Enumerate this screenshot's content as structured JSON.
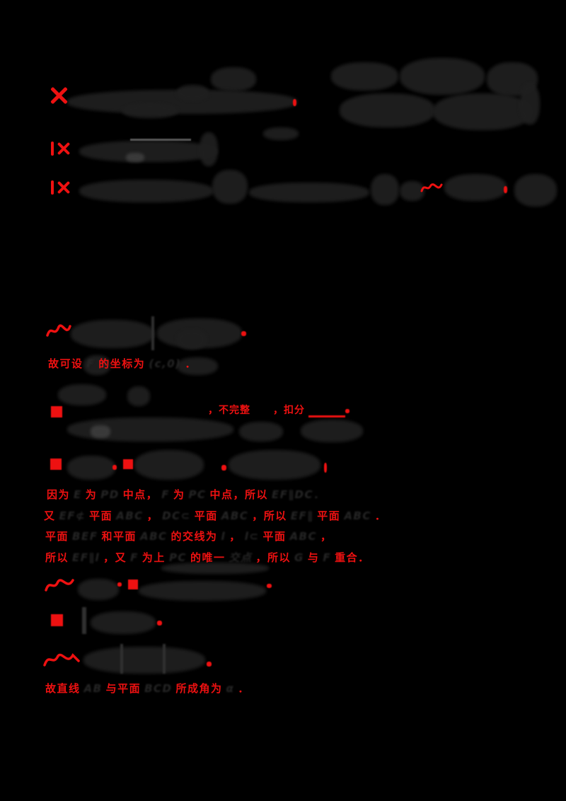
{
  "page": {
    "background": "#000000",
    "red_pen_color": "#ee1111",
    "ink_color": "#262626"
  },
  "icons": {
    "cross": "✗",
    "filled_square": "■",
    "dot": "・"
  },
  "red_lines": {
    "coordinate_note": [
      {
        "c": "r",
        "t": "故可设"
      },
      {
        "c": "k",
        "t": "F"
      },
      {
        "c": "r",
        "t": "的坐标为"
      },
      {
        "c": "k",
        "t": "(c,0)"
      },
      {
        "c": "r",
        "t": "．"
      }
    ],
    "incomplete_note": {
      "part1": "，不完整",
      "part2": "，扣分"
    },
    "proof_line1": [
      {
        "c": "r",
        "t": "因为"
      },
      {
        "c": "k",
        "t": "E"
      },
      {
        "c": "r",
        "t": "为"
      },
      {
        "c": "k",
        "t": "PD"
      },
      {
        "c": "r",
        "t": "中点，"
      },
      {
        "c": "k",
        "t": "F"
      },
      {
        "c": "r",
        "t": "为"
      },
      {
        "c": "k",
        "t": "PC"
      },
      {
        "c": "r",
        "t": "中点，所以"
      },
      {
        "c": "k",
        "t": "EF∥DC．"
      }
    ],
    "proof_line2": [
      {
        "c": "r",
        "t": "又"
      },
      {
        "c": "k",
        "t": "EF⊄"
      },
      {
        "c": "r",
        "t": "平面"
      },
      {
        "c": "k",
        "t": "ABC"
      },
      {
        "c": "r",
        "t": "，"
      },
      {
        "c": "k",
        "t": "DC⊂"
      },
      {
        "c": "r",
        "t": "平面"
      },
      {
        "c": "k",
        "t": "ABC"
      },
      {
        "c": "r",
        "t": "，所以"
      },
      {
        "c": "k",
        "t": "EF∥"
      },
      {
        "c": "r",
        "t": "平面"
      },
      {
        "c": "k",
        "t": "ABC"
      },
      {
        "c": "r",
        "t": "．"
      }
    ],
    "proof_line3": [
      {
        "c": "r",
        "t": "平面"
      },
      {
        "c": "k",
        "t": "BEF"
      },
      {
        "c": "r",
        "t": "和平面"
      },
      {
        "c": "k",
        "t": "ABC"
      },
      {
        "c": "r",
        "t": "的交线为"
      },
      {
        "c": "k",
        "t": "l"
      },
      {
        "c": "r",
        "t": "，"
      },
      {
        "c": "k",
        "t": "l⊂"
      },
      {
        "c": "r",
        "t": "平面"
      },
      {
        "c": "k",
        "t": "ABC"
      },
      {
        "c": "r",
        "t": "，"
      }
    ],
    "proof_line4": [
      {
        "c": "r",
        "t": "所以"
      },
      {
        "c": "k",
        "t": "EF∥l"
      },
      {
        "c": "r",
        "t": "，又"
      },
      {
        "c": "k",
        "t": "F"
      },
      {
        "c": "r",
        "t": "为上"
      },
      {
        "c": "k",
        "t": "PC"
      },
      {
        "c": "r",
        "t": "的唯一"
      },
      {
        "c": "k",
        "t": "交点"
      },
      {
        "c": "r",
        "t": "，所以"
      },
      {
        "c": "k",
        "t": "G"
      },
      {
        "c": "r",
        "t": "与"
      },
      {
        "c": "k",
        "t": "F"
      },
      {
        "c": "r",
        "t": "重合．"
      }
    ],
    "angle_conclusion": [
      {
        "c": "r",
        "t": "故直线"
      },
      {
        "c": "k",
        "t": "AB"
      },
      {
        "c": "r",
        "t": "与平面"
      },
      {
        "c": "k",
        "t": "BCD"
      },
      {
        "c": "r",
        "t": "所成角为"
      },
      {
        "c": "k",
        "t": "α"
      },
      {
        "c": "r",
        "t": "．"
      }
    ]
  }
}
